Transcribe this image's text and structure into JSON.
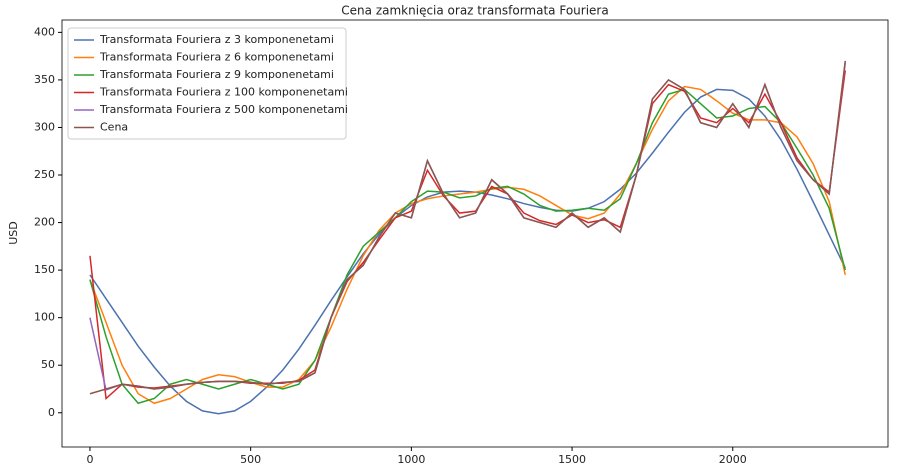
{
  "chart_data": {
    "type": "line",
    "title": "Cena zamknięcia oraz transformata Fouriera",
    "y_label": "USD",
    "x": [
      0,
      50,
      100,
      150,
      200,
      250,
      300,
      350,
      400,
      450,
      500,
      550,
      600,
      650,
      700,
      750,
      800,
      850,
      900,
      950,
      1000,
      1050,
      1100,
      1150,
      1200,
      1250,
      1300,
      1350,
      1400,
      1450,
      1500,
      1550,
      1600,
      1650,
      1700,
      1750,
      1800,
      1850,
      1900,
      1950,
      2000,
      2050,
      2100,
      2150,
      2200,
      2250,
      2300,
      2350
    ],
    "series": [
      {
        "name": "Transformata Fouriera z 3 komponenetami",
        "color": "#4c72b0",
        "values": [
          145,
          120,
          95,
          70,
          48,
          28,
          12,
          2,
          -1,
          2,
          12,
          27,
          45,
          67,
          92,
          118,
          143,
          167,
          188,
          205,
          218,
          227,
          232,
          233,
          232,
          229,
          225,
          220,
          216,
          213,
          212,
          215,
          222,
          235,
          252,
          273,
          295,
          316,
          332,
          340,
          339,
          330,
          312,
          287,
          256,
          222,
          187,
          152
        ]
      },
      {
        "name": "Transformata Fouriera z 6 komponenetami",
        "color": "#ff7f0e",
        "values": [
          140,
          95,
          50,
          20,
          10,
          15,
          25,
          35,
          40,
          38,
          32,
          27,
          27,
          35,
          55,
          90,
          130,
          165,
          192,
          210,
          220,
          225,
          228,
          230,
          232,
          235,
          237,
          235,
          228,
          218,
          208,
          204,
          210,
          230,
          262,
          298,
          328,
          343,
          340,
          328,
          315,
          308,
          308,
          305,
          290,
          262,
          222,
          145
        ]
      },
      {
        "name": "Transformata Fouriera z 9 komponenetami",
        "color": "#2ca02c",
        "values": [
          140,
          80,
          30,
          10,
          15,
          30,
          35,
          30,
          25,
          30,
          35,
          30,
          25,
          30,
          55,
          100,
          145,
          175,
          190,
          205,
          222,
          233,
          232,
          226,
          228,
          236,
          238,
          230,
          218,
          212,
          213,
          215,
          213,
          225,
          262,
          305,
          335,
          340,
          325,
          310,
          312,
          320,
          322,
          305,
          278,
          250,
          215,
          150
        ]
      },
      {
        "name": "Transformata Fouriera z 100 komponenetami",
        "color": "#d62728",
        "values": [
          165,
          15,
          30,
          27,
          26,
          28,
          30,
          32,
          33,
          33,
          31,
          31,
          31,
          34,
          45,
          100,
          138,
          158,
          182,
          205,
          212,
          255,
          228,
          210,
          212,
          238,
          230,
          210,
          202,
          198,
          208,
          200,
          203,
          195,
          250,
          325,
          345,
          338,
          310,
          305,
          320,
          305,
          335,
          305,
          268,
          245,
          232,
          360
        ]
      },
      {
        "name": "Transformata Fouriera z 500 komponenetami",
        "color": "#9467bd",
        "values": [
          100,
          24,
          30,
          28,
          25,
          27,
          30,
          32,
          33,
          33,
          32,
          30,
          32,
          33,
          42,
          100,
          140,
          155,
          185,
          210,
          205,
          265,
          230,
          205,
          210,
          245,
          230,
          205,
          200,
          195,
          210,
          195,
          205,
          190,
          250,
          330,
          350,
          340,
          305,
          300,
          325,
          300,
          345,
          300,
          265,
          245,
          230,
          368
        ]
      },
      {
        "name": "Cena",
        "color": "#8c564b",
        "values": [
          20,
          25,
          30,
          28,
          25,
          27,
          30,
          32,
          33,
          33,
          32,
          30,
          32,
          33,
          42,
          100,
          140,
          155,
          185,
          210,
          205,
          265,
          230,
          205,
          210,
          245,
          230,
          205,
          200,
          195,
          210,
          195,
          205,
          190,
          250,
          330,
          350,
          340,
          305,
          300,
          325,
          300,
          345,
          300,
          265,
          245,
          230,
          370
        ]
      }
    ],
    "xlim": [
      -87,
      2483
    ],
    "ylim": [
      -36,
      413
    ],
    "xticks": [
      0,
      500,
      1000,
      1500,
      2000
    ],
    "yticks": [
      0,
      50,
      100,
      150,
      200,
      250,
      300,
      350,
      400
    ],
    "legend": "upper left"
  }
}
